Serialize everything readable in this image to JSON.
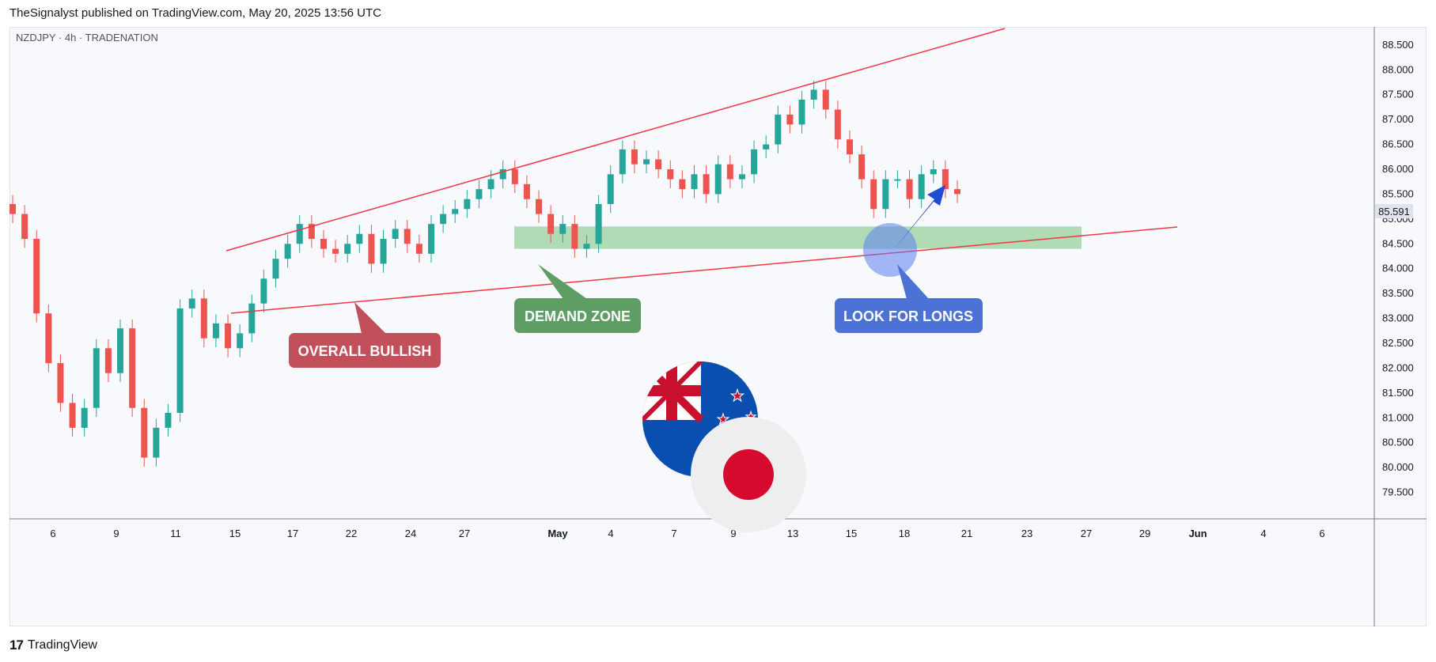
{
  "header": {
    "text": "TheSignalyst published on TradingView.com, May 20, 2025 13:56 UTC"
  },
  "footer": {
    "brand": "TradingView"
  },
  "colors": {
    "up": "#26a69a",
    "down": "#ef5350",
    "trendline": "#f23645",
    "demand_zone": "#a5d6a7",
    "callout_red": "#c1505a",
    "callout_green": "#5e9e64",
    "callout_blue": "#4d72d6",
    "arrow_blue": "#1f4fd1"
  },
  "chart_data": {
    "type": "candlestick",
    "symbol_label": "NZDJPY · 4h · TRADENATION",
    "last_price": "85.591",
    "y_ticks": [
      "88.500",
      "88.000",
      "87.500",
      "87.000",
      "86.500",
      "86.000",
      "85.500",
      "85.000",
      "84.500",
      "84.000",
      "83.500",
      "83.000",
      "82.500",
      "82.000",
      "81.500",
      "81.000",
      "80.500",
      "80.000",
      "79.500"
    ],
    "ylim": [
      79.0,
      88.8
    ],
    "x_ticks": [
      {
        "label": "6",
        "bold": false
      },
      {
        "label": "9",
        "bold": false
      },
      {
        "label": "11",
        "bold": false
      },
      {
        "label": "15",
        "bold": false
      },
      {
        "label": "17",
        "bold": false
      },
      {
        "label": "22",
        "bold": false
      },
      {
        "label": "24",
        "bold": false
      },
      {
        "label": "27",
        "bold": false
      },
      {
        "label": "May",
        "bold": true
      },
      {
        "label": "4",
        "bold": false
      },
      {
        "label": "7",
        "bold": false
      },
      {
        "label": "9",
        "bold": false
      },
      {
        "label": "13",
        "bold": false
      },
      {
        "label": "15",
        "bold": false
      },
      {
        "label": "18",
        "bold": false
      },
      {
        "label": "21",
        "bold": false
      },
      {
        "label": "23",
        "bold": false
      },
      {
        "label": "27",
        "bold": false
      },
      {
        "label": "29",
        "bold": false
      },
      {
        "label": "Jun",
        "bold": true
      },
      {
        "label": "4",
        "bold": false
      },
      {
        "label": "6",
        "bold": false
      }
    ],
    "series": [
      {
        "values": [
          85.1,
          84.6,
          83.1,
          82.1,
          81.3,
          80.8,
          81.2,
          82.4,
          81.9,
          82.8,
          81.2,
          80.2,
          80.8,
          81.1,
          83.2,
          83.4,
          82.6,
          82.9,
          82.4,
          82.7,
          83.3,
          83.8,
          84.2,
          84.5,
          84.9,
          84.6,
          84.4,
          84.3,
          84.5,
          84.7,
          84.1,
          84.6,
          84.8,
          84.5,
          84.3,
          84.9,
          85.1,
          85.2,
          85.4,
          85.6,
          85.8,
          86.0,
          85.7,
          85.4,
          85.1,
          84.7,
          84.9,
          84.4,
          84.5,
          85.3,
          85.9,
          86.4,
          86.1,
          86.2,
          86.0,
          85.8,
          85.6,
          85.9,
          85.5,
          86.1,
          85.8,
          85.9,
          86.4,
          86.5,
          87.1,
          86.9,
          87.4,
          87.6,
          87.2,
          86.6,
          86.3,
          85.8,
          85.2,
          85.8,
          85.8,
          85.4,
          85.9,
          86.0,
          85.6,
          85.5
        ]
      }
    ]
  },
  "annotations": {
    "overall_bullish": "OVERALL BULLISH",
    "demand_zone": "DEMAND ZONE",
    "look_for_longs": "LOOK FOR LONGS",
    "demand_zone_range": [
      84.4,
      84.85
    ]
  },
  "flags": {
    "left": "new-zealand-flag",
    "right": "japan-flag"
  }
}
